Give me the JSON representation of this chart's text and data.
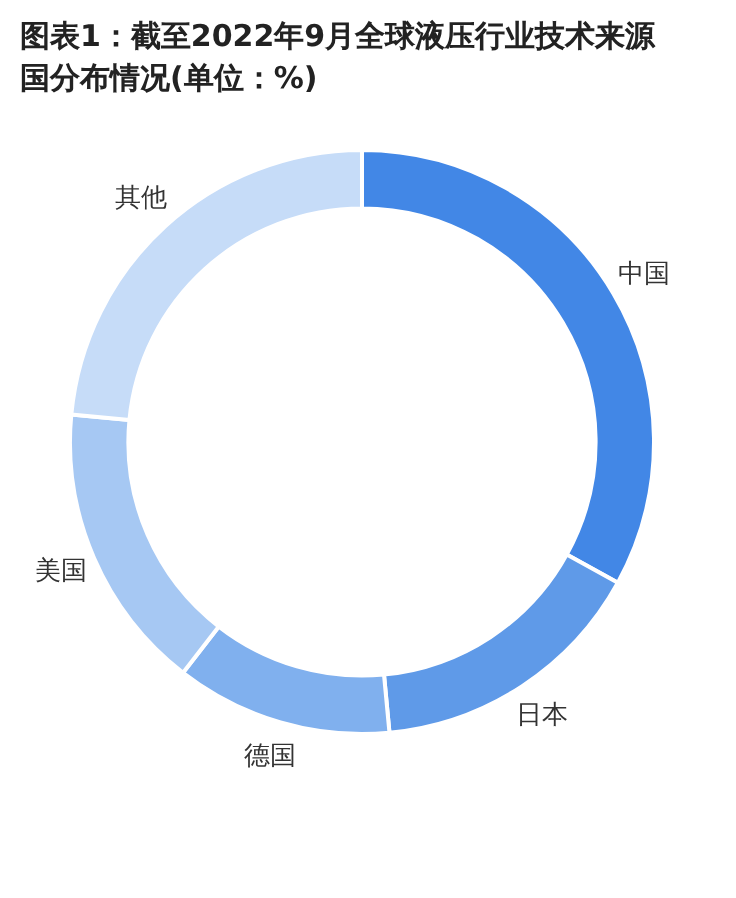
{
  "chart_data": {
    "type": "donut",
    "title": "图表1：截至2022年9月全球液压行业技术来源国分布情况(单位：%)",
    "categories": [
      "中国",
      "日本",
      "德国",
      "美国",
      "其他"
    ],
    "values": [
      33,
      15.5,
      12,
      16,
      23.5
    ],
    "colors": [
      "#4287e6",
      "#5f9ae8",
      "#80b0ee",
      "#a6c8f3",
      "#c6dcf8"
    ],
    "legend": false
  }
}
